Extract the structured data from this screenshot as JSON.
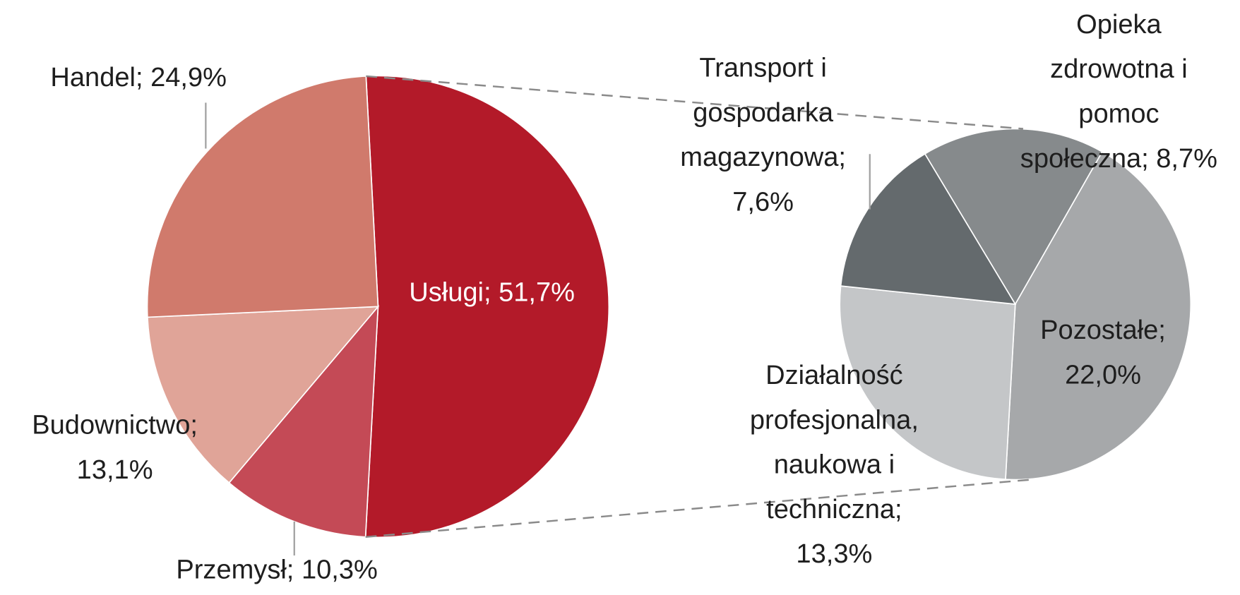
{
  "chart_data": [
    {
      "type": "pie",
      "values": [
        51.7,
        10.3,
        13.1,
        24.9
      ],
      "value_labels": [
        [
          "Usługi; 51,7%"
        ],
        [
          "Przemysł; 10,3%"
        ],
        [
          "Budownictwo;",
          "13,1%"
        ],
        [
          "Handel; 24,9%"
        ]
      ],
      "colors": [
        "#b31a29",
        "#c44a56",
        "#e0a498",
        "#d07a6c"
      ]
    },
    {
      "type": "pie",
      "values": [
        8.7,
        22.0,
        13.3,
        7.6
      ],
      "value_labels": [
        [
          "Opieka",
          "zdrowotna i",
          "pomoc",
          "społeczna; 8,7%"
        ],
        [
          "Pozostałe;",
          "22,0%"
        ],
        [
          "Działalność",
          "profesjonalna,",
          "naukowa i",
          "techniczna;",
          "13,3%"
        ],
        [
          "Transport i",
          "gospodarka",
          "magazynowa;",
          "7,6%"
        ]
      ],
      "colors": [
        "#868a8c",
        "#a6a8aa",
        "#c4c6c8",
        "#646a6d"
      ]
    }
  ]
}
